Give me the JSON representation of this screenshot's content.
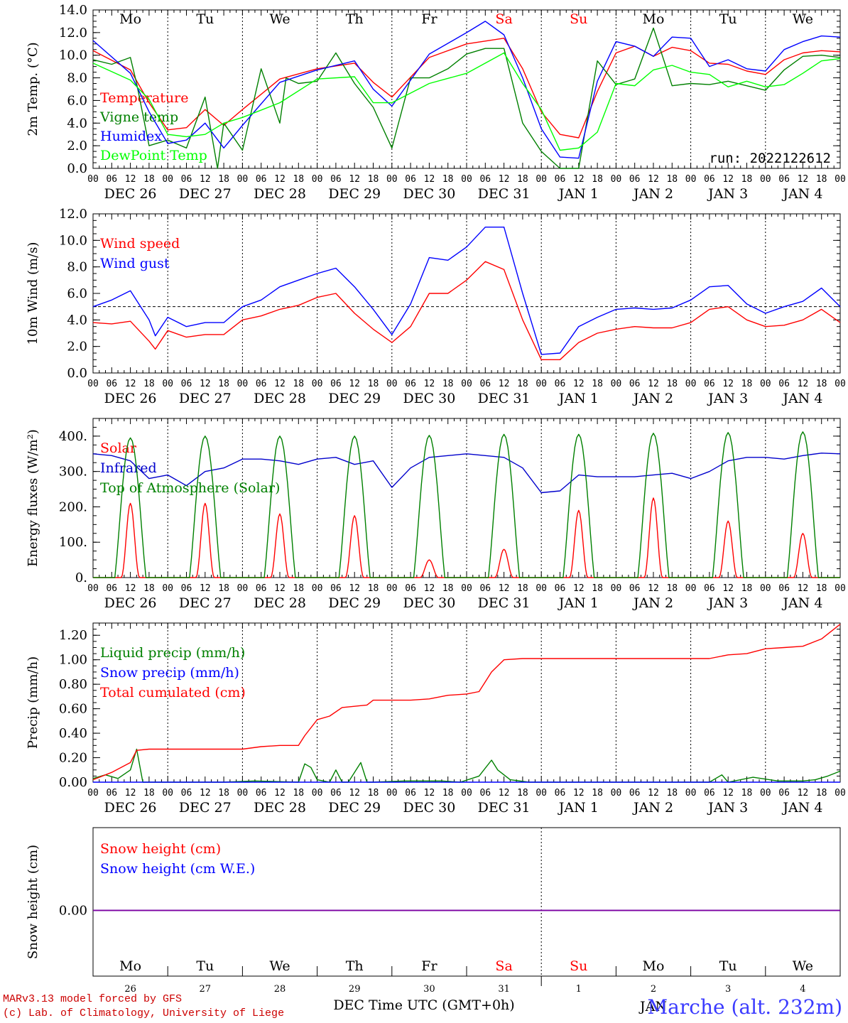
{
  "meta": {
    "run_label": "run: 2022122612",
    "model_line": "MARv3.13 model forced by GFS",
    "credit_line": "(c) Lab. of Climatology, University of Liege",
    "station": "Marche (alt. 232m)",
    "x_axis_title": "DEC Time UTC (GMT+0h)",
    "bottom_month_left": "DEC",
    "bottom_month_right": "JAN"
  },
  "days": {
    "weekdays": [
      "Mo",
      "Tu",
      "We",
      "Th",
      "Fr",
      "Sa",
      "Su",
      "Mo",
      "Tu",
      "We"
    ],
    "weekend_color": "#ff0000",
    "weekday_color": "#000000",
    "weekend_indices": [
      5,
      6
    ],
    "dates": [
      "DEC 26",
      "DEC 27",
      "DEC 28",
      "DEC 29",
      "DEC 30",
      "DEC 31",
      "JAN  1",
      "JAN  2",
      "JAN  3",
      "JAN  4"
    ],
    "day_numbers": [
      "26",
      "27",
      "28",
      "29",
      "30",
      "31",
      "1",
      "2",
      "3",
      "4"
    ],
    "hour_ticks": [
      "00",
      "06",
      "12",
      "18"
    ]
  },
  "chart_data": [
    {
      "type": "line",
      "panel": "temperature",
      "ylabel": "2m Temp. (°C)",
      "ylim": [
        0,
        14
      ],
      "yticks": [
        "0.0",
        "2.0",
        "4.0",
        "6.0",
        "8.0",
        "10.0",
        "12.0",
        "14.0"
      ],
      "x_unit": "hours since DEC 26 00 UTC",
      "xlim": [
        0,
        240
      ],
      "series": [
        {
          "name": "Temperature",
          "color": "#ff0000",
          "x": [
            0,
            12,
            18,
            24,
            30,
            36,
            42,
            48,
            60,
            72,
            84,
            90,
            96,
            108,
            120,
            132,
            138,
            144,
            150,
            156,
            162,
            168,
            174,
            180,
            186,
            192,
            198,
            204,
            210,
            216,
            222,
            228,
            234,
            240
          ],
          "y": [
            10.4,
            8.7,
            5.8,
            3.4,
            3.6,
            5.2,
            3.8,
            5.2,
            7.9,
            8.8,
            9.3,
            7.6,
            6.3,
            9.8,
            11.0,
            11.5,
            8.8,
            5.0,
            3.0,
            2.7,
            6.8,
            10.2,
            10.8,
            9.9,
            10.7,
            10.4,
            9.3,
            9.2,
            8.6,
            8.3,
            9.6,
            10.2,
            10.4,
            10.3
          ]
        },
        {
          "name": "Vigne temp",
          "color": "#008000",
          "x": [
            0,
            6,
            12,
            14,
            18,
            24,
            30,
            36,
            40,
            42,
            48,
            54,
            60,
            62,
            66,
            72,
            78,
            84,
            90,
            96,
            102,
            108,
            114,
            120,
            126,
            132,
            138,
            144,
            150,
            156,
            162,
            168,
            174,
            180,
            186,
            192,
            198,
            204,
            210,
            216,
            222,
            228,
            234,
            240
          ],
          "y": [
            9.6,
            9.2,
            9.8,
            7.5,
            2.0,
            2.5,
            1.8,
            6.3,
            0.0,
            4.0,
            1.6,
            8.8,
            4.0,
            8.0,
            7.5,
            7.7,
            10.2,
            7.5,
            5.4,
            1.8,
            8.0,
            8.0,
            8.8,
            10.1,
            10.6,
            10.6,
            4.0,
            1.5,
            0.0,
            0.0,
            9.5,
            7.4,
            7.9,
            12.4,
            7.3,
            7.5,
            7.4,
            7.7,
            7.3,
            6.9,
            8.7,
            9.9,
            10.0,
            9.8
          ]
        },
        {
          "name": "Humidex",
          "color": "#0000ff",
          "x": [
            0,
            12,
            18,
            24,
            30,
            36,
            42,
            48,
            60,
            72,
            84,
            90,
            96,
            108,
            120,
            126,
            132,
            138,
            144,
            150,
            156,
            162,
            168,
            174,
            180,
            186,
            192,
            198,
            204,
            210,
            216,
            222,
            228,
            234,
            240
          ],
          "y": [
            11.3,
            8.4,
            5.0,
            2.2,
            2.5,
            4.0,
            1.8,
            3.8,
            7.6,
            8.7,
            9.5,
            7.0,
            5.5,
            10.1,
            12.0,
            13.0,
            11.8,
            8.0,
            3.5,
            1.0,
            0.9,
            7.7,
            11.2,
            10.8,
            9.9,
            11.6,
            11.5,
            9.0,
            9.6,
            8.8,
            8.6,
            10.5,
            11.2,
            11.7,
            11.6
          ]
        },
        {
          "name": "DewPoint Temp",
          "color": "#00ff00",
          "x": [
            0,
            12,
            18,
            24,
            30,
            36,
            42,
            48,
            60,
            72,
            84,
            90,
            96,
            108,
            120,
            132,
            138,
            144,
            150,
            156,
            162,
            168,
            174,
            180,
            186,
            192,
            198,
            204,
            210,
            216,
            222,
            228,
            234,
            240
          ],
          "y": [
            9.3,
            7.8,
            6.1,
            3.0,
            2.8,
            3.0,
            4.0,
            4.5,
            5.8,
            7.9,
            8.1,
            5.8,
            5.8,
            7.5,
            8.4,
            10.2,
            7.5,
            5.2,
            1.6,
            1.8,
            3.2,
            7.5,
            7.3,
            8.7,
            9.1,
            8.5,
            8.3,
            7.2,
            7.7,
            7.2,
            7.4,
            8.4,
            9.5,
            9.7
          ]
        }
      ]
    },
    {
      "type": "line",
      "panel": "wind",
      "ylabel": "10m Wind (m/s)",
      "ylim": [
        0,
        12
      ],
      "yticks": [
        "0.0",
        "2.0",
        "4.0",
        "6.0",
        "8.0",
        "10.0",
        "12.0"
      ],
      "reference_line": 5.0,
      "xlim": [
        0,
        240
      ],
      "series": [
        {
          "name": "Wind speed",
          "color": "#ff0000",
          "x": [
            0,
            6,
            12,
            18,
            20,
            24,
            30,
            36,
            42,
            48,
            54,
            60,
            66,
            72,
            78,
            84,
            90,
            96,
            102,
            108,
            114,
            120,
            126,
            132,
            138,
            144,
            150,
            156,
            162,
            168,
            174,
            180,
            186,
            192,
            198,
            204,
            210,
            216,
            222,
            228,
            234,
            240
          ],
          "y": [
            3.8,
            3.7,
            3.9,
            2.4,
            1.8,
            3.2,
            2.7,
            2.9,
            2.9,
            4.0,
            4.3,
            4.8,
            5.1,
            5.7,
            6.0,
            4.5,
            3.3,
            2.3,
            3.5,
            6.0,
            6.0,
            7.0,
            8.4,
            7.8,
            4.0,
            1.0,
            1.0,
            2.3,
            3.0,
            3.3,
            3.5,
            3.4,
            3.4,
            3.8,
            4.8,
            5.0,
            4.0,
            3.5,
            3.6,
            4.0,
            4.8,
            3.8
          ]
        },
        {
          "name": "Wind gust",
          "color": "#0000ff",
          "x": [
            0,
            6,
            12,
            18,
            20,
            24,
            30,
            36,
            42,
            48,
            54,
            60,
            66,
            72,
            78,
            84,
            90,
            96,
            102,
            108,
            114,
            120,
            126,
            132,
            138,
            144,
            150,
            156,
            162,
            168,
            174,
            180,
            186,
            192,
            198,
            204,
            210,
            216,
            222,
            228,
            234,
            240
          ],
          "y": [
            5.0,
            5.5,
            6.2,
            4.0,
            2.8,
            4.2,
            3.5,
            3.8,
            3.8,
            5.0,
            5.5,
            6.5,
            7.0,
            7.5,
            7.9,
            6.5,
            4.8,
            2.9,
            5.2,
            8.7,
            8.5,
            9.5,
            11.0,
            11.0,
            6.0,
            1.4,
            1.5,
            3.5,
            4.2,
            4.8,
            4.9,
            4.8,
            4.9,
            5.5,
            6.5,
            6.6,
            5.2,
            4.5,
            5.0,
            5.4,
            6.4,
            5.0
          ]
        }
      ]
    },
    {
      "type": "line",
      "panel": "energy",
      "ylabel": "Energy fluxes (W/m²)",
      "ylim": [
        0,
        450
      ],
      "yticks": [
        "0.",
        "100.",
        "200.",
        "300.",
        "400."
      ],
      "xlim": [
        0,
        240
      ],
      "series": [
        {
          "name": "Solar",
          "color": "#ff0000",
          "day_peaks": [
            210,
            210,
            180,
            175,
            50,
            80,
            190,
            225,
            160,
            125
          ]
        },
        {
          "name": "Infrared",
          "color": "#0000cc",
          "x": [
            0,
            6,
            12,
            18,
            24,
            30,
            36,
            42,
            48,
            54,
            60,
            66,
            72,
            78,
            84,
            90,
            96,
            102,
            108,
            114,
            120,
            126,
            132,
            138,
            144,
            150,
            156,
            162,
            168,
            174,
            180,
            186,
            192,
            198,
            204,
            210,
            216,
            222,
            228,
            234,
            240
          ],
          "y": [
            350,
            345,
            330,
            280,
            290,
            260,
            300,
            310,
            335,
            335,
            330,
            320,
            335,
            340,
            320,
            330,
            255,
            310,
            340,
            345,
            350,
            345,
            340,
            310,
            240,
            245,
            290,
            285,
            285,
            285,
            290,
            295,
            280,
            300,
            330,
            340,
            340,
            335,
            345,
            352,
            350
          ]
        },
        {
          "name": "Top of Atmosphere (Solar)",
          "color": "#008000",
          "day_peaks": [
            395,
            400,
            400,
            400,
            402,
            405,
            405,
            408,
            410,
            412
          ]
        }
      ]
    },
    {
      "type": "line",
      "panel": "precip",
      "ylabel": "Precip (mm/h)",
      "ylim": [
        0,
        1.3
      ],
      "yticks": [
        "0.00",
        "0.20",
        "0.40",
        "0.60",
        "0.80",
        "1.00",
        "1.20"
      ],
      "xlim": [
        0,
        240
      ],
      "series": [
        {
          "name": "Liquid precip (mm/h)",
          "color": "#008000",
          "x": [
            0,
            4,
            8,
            12,
            14,
            16,
            18,
            42,
            52,
            66,
            68,
            70,
            72,
            76,
            78,
            80,
            82,
            86,
            88,
            90,
            100,
            112,
            118,
            124,
            128,
            130,
            134,
            140,
            198,
            202,
            204,
            212,
            220,
            228,
            232,
            236,
            240
          ],
          "y": [
            0.03,
            0.06,
            0.03,
            0.1,
            0.27,
            0.0,
            0.0,
            0.0,
            0.01,
            0.0,
            0.15,
            0.12,
            0.02,
            0.0,
            0.1,
            0.0,
            0.0,
            0.16,
            0.0,
            0.0,
            0.01,
            0.01,
            0.0,
            0.05,
            0.18,
            0.1,
            0.02,
            0.0,
            0.0,
            0.06,
            0.0,
            0.04,
            0.01,
            0.01,
            0.02,
            0.05,
            0.09
          ]
        },
        {
          "name": "Snow precip (mm/h)",
          "color": "#0000ff",
          "x": [
            0,
            240
          ],
          "y": [
            0,
            0
          ]
        },
        {
          "name": "Total cumulated (cm)",
          "color": "#ff0000",
          "x": [
            0,
            6,
            12,
            14,
            18,
            30,
            48,
            54,
            60,
            66,
            68,
            72,
            76,
            80,
            84,
            88,
            90,
            96,
            102,
            108,
            114,
            120,
            124,
            126,
            128,
            132,
            138,
            150,
            174,
            198,
            204,
            210,
            216,
            222,
            228,
            234,
            240
          ],
          "y": [
            0.02,
            0.08,
            0.16,
            0.26,
            0.27,
            0.27,
            0.27,
            0.29,
            0.3,
            0.3,
            0.38,
            0.51,
            0.54,
            0.61,
            0.62,
            0.63,
            0.67,
            0.67,
            0.67,
            0.68,
            0.71,
            0.72,
            0.74,
            0.82,
            0.9,
            1.0,
            1.01,
            1.01,
            1.01,
            1.01,
            1.04,
            1.05,
            1.09,
            1.1,
            1.11,
            1.17,
            1.29
          ]
        }
      ]
    },
    {
      "type": "line",
      "panel": "snow",
      "ylabel": "Snow height (cm)",
      "ytick_labels": [
        "0.00"
      ],
      "xlim": [
        0,
        240
      ],
      "series": [
        {
          "name": "Snow height (cm)",
          "color": "#ff0000",
          "x": [
            0,
            240
          ],
          "y": [
            0,
            0
          ]
        },
        {
          "name": "Snow height (cm W.E.)",
          "color": "#0000ff",
          "x": [
            0,
            240
          ],
          "y": [
            0,
            0
          ]
        }
      ]
    }
  ]
}
